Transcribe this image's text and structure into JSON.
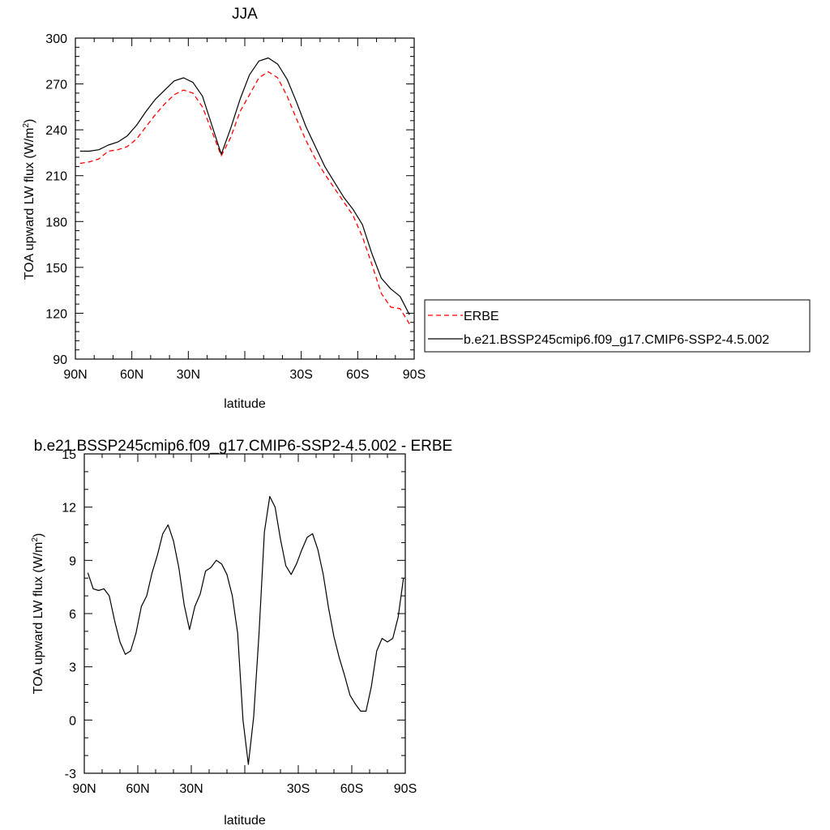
{
  "chart_data": [
    {
      "type": "line",
      "title": "JJA",
      "xlabel": "latitude",
      "ylabel": "TOA upward LW flux (W/m",
      "ylabel_sup": "2",
      "ylabel_close": ")",
      "xlim": [
        90,
        -90
      ],
      "ylim": [
        90,
        300
      ],
      "xticks": [
        90,
        60,
        30,
        0,
        -30,
        -60,
        -90
      ],
      "xtick_labels": [
        "90N",
        "60N",
        "30N",
        "",
        "30S",
        "60S",
        "90S"
      ],
      "yticks": [
        90,
        120,
        150,
        180,
        210,
        240,
        270,
        300
      ],
      "ytick_labels": [
        "90",
        "120",
        "150",
        "180",
        "210",
        "240",
        "270",
        "300"
      ],
      "legend_placement": "right",
      "x": [
        87.5,
        82.5,
        77.5,
        72.5,
        67.5,
        62.5,
        57.5,
        52.5,
        47.5,
        42.5,
        37.5,
        32.5,
        27.5,
        22.5,
        17.5,
        12.5,
        7.5,
        2.5,
        -2.5,
        -7.5,
        -12.5,
        -17.5,
        -22.5,
        -27.5,
        -32.5,
        -37.5,
        -42.5,
        -47.5,
        -52.5,
        -57.5,
        -62.5,
        -67.5,
        -72.5,
        -77.5,
        -82.5,
        -87.5
      ],
      "series": [
        {
          "name": "ERBE",
          "color": "#ff0000",
          "dash": true,
          "values": [
            218,
            219,
            221,
            226,
            227,
            229,
            234,
            242,
            250,
            257,
            263,
            266,
            264,
            255,
            239,
            223,
            235,
            252,
            263,
            274,
            278,
            274,
            262,
            247,
            233,
            221,
            211,
            202,
            193,
            184,
            170,
            152,
            133,
            124,
            123,
            113
          ]
        },
        {
          "name": "b.e21.BSSP245cmip6.f09_g17.CMIP6-SSP2-4.5.002",
          "color": "#000000",
          "dash": false,
          "values": [
            226,
            226,
            227,
            230,
            232,
            236,
            243,
            252,
            260,
            266,
            272,
            274,
            271,
            262,
            243,
            224,
            241,
            260,
            276,
            285,
            287,
            283,
            273,
            258,
            242,
            229,
            216,
            206,
            196,
            188,
            178,
            159,
            143,
            136,
            131,
            119
          ]
        }
      ]
    },
    {
      "type": "line",
      "title": "b.e21.BSSP245cmip6.f09_g17.CMIP6-SSP2-4.5.002 - ERBE",
      "xlabel": "latitude",
      "ylabel": "TOA upward LW flux (W/m",
      "ylabel_sup": "2",
      "ylabel_close": ")",
      "xlim": [
        90,
        -90
      ],
      "ylim": [
        -3,
        15
      ],
      "xticks": [
        90,
        60,
        30,
        0,
        -30,
        -60,
        -90
      ],
      "xtick_labels": [
        "90N",
        "60N",
        "30N",
        "",
        "30S",
        "60S",
        "90S"
      ],
      "yticks": [
        -3,
        0,
        3,
        6,
        9,
        12,
        15
      ],
      "ytick_labels": [
        "-3",
        "0",
        "3",
        "6",
        "9",
        "12",
        "15"
      ],
      "x": [
        88,
        85,
        82,
        79,
        76,
        73,
        70,
        67,
        64,
        61,
        58,
        55,
        52,
        49,
        46,
        43,
        40,
        37,
        34,
        31,
        28,
        25,
        22,
        19,
        16,
        13,
        10,
        7,
        4,
        1,
        -2,
        -5,
        -8,
        -11,
        -14,
        -17,
        -20,
        -23,
        -26,
        -29,
        -32,
        -35,
        -38,
        -41,
        -44,
        -47,
        -50,
        -53,
        -56,
        -59,
        -62,
        -65,
        -68,
        -71,
        -74,
        -77,
        -80,
        -83,
        -86,
        -89
      ],
      "series": [
        {
          "name": "",
          "color": "#000000",
          "values": [
            8.3,
            7.4,
            7.3,
            7.4,
            7.0,
            5.6,
            4.4,
            3.7,
            3.9,
            4.9,
            6.4,
            7.0,
            8.3,
            9.3,
            10.5,
            11.0,
            10.1,
            8.6,
            6.5,
            5.1,
            6.4,
            7.1,
            8.4,
            8.6,
            9.0,
            8.8,
            8.2,
            7.0,
            4.9,
            0.0,
            -2.5,
            0.2,
            4.9,
            10.6,
            12.6,
            12.0,
            10.2,
            8.7,
            8.2,
            8.8,
            9.6,
            10.3,
            10.5,
            9.6,
            8.2,
            6.3,
            4.7,
            3.5,
            2.5,
            1.4,
            0.9,
            0.5,
            0.5,
            1.9,
            3.9,
            4.6,
            4.4,
            4.6,
            5.8,
            8.0
          ]
        }
      ]
    }
  ]
}
